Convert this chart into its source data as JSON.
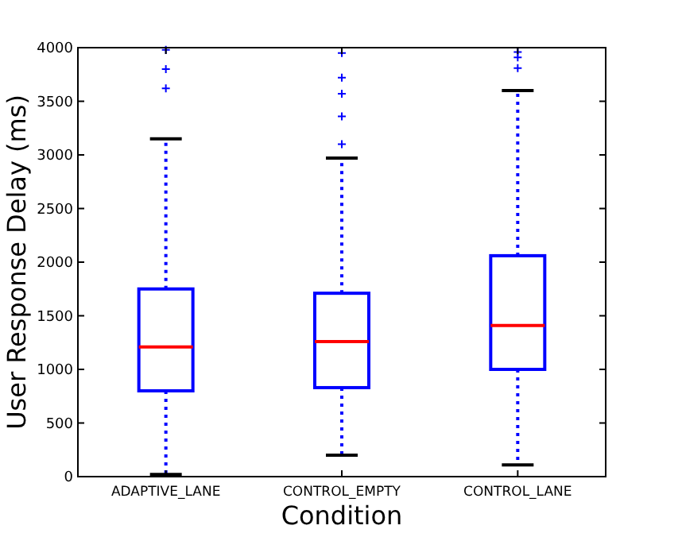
{
  "chart_data": {
    "type": "box",
    "xlabel": "Condition",
    "ylabel": "User Response Delay (ms)",
    "categories": [
      "ADAPTIVE_LANE",
      "CONTROL_EMPTY",
      "CONTROL_LANE"
    ],
    "boxes": [
      {
        "low": 20,
        "q1": 800,
        "median": 1210,
        "q3": 1750,
        "high": 3150,
        "outliers": [
          3620,
          3800,
          3980
        ]
      },
      {
        "low": 200,
        "q1": 830,
        "median": 1260,
        "q3": 1710,
        "high": 2970,
        "outliers": [
          3100,
          3360,
          3570,
          3720,
          3950
        ]
      },
      {
        "low": 110,
        "q1": 1000,
        "median": 1410,
        "q3": 2060,
        "high": 3600,
        "outliers": [
          3810,
          3910,
          3960
        ]
      }
    ],
    "color": "#0000ff",
    "marker": "cross",
    "line_style": "dotted",
    "grid": false,
    "ylim": [
      0,
      4000
    ],
    "yticks": [
      0,
      500,
      1000,
      1500,
      2000,
      2500,
      3000,
      3500,
      4000
    ]
  }
}
